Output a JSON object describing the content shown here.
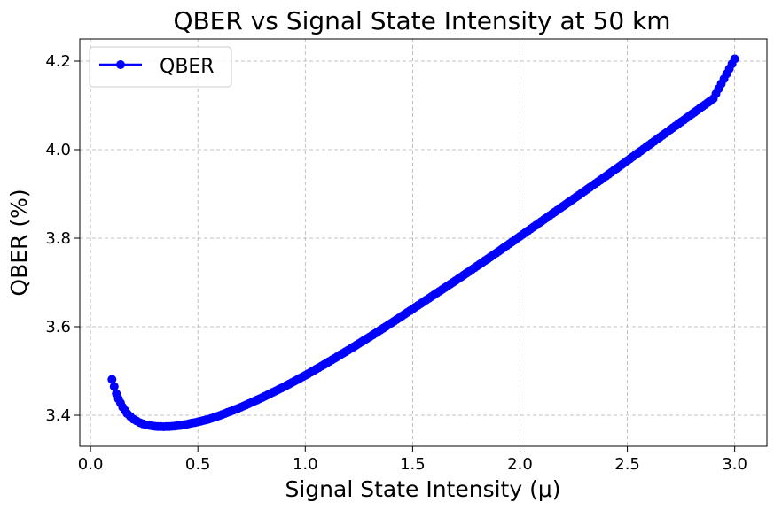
{
  "chart_data": {
    "type": "line",
    "title": "QBER vs Signal State Intensity at 50 km",
    "xlabel": "Signal State Intensity (μ)",
    "ylabel": "QBER (%)",
    "xlim": [
      -0.05,
      3.15
    ],
    "ylim": [
      3.33,
      4.25
    ],
    "xticks": [
      "0.0",
      "0.5",
      "1.0",
      "1.5",
      "2.0",
      "2.5",
      "3.0"
    ],
    "yticks": [
      "3.4",
      "3.6",
      "3.8",
      "4.0",
      "4.2"
    ],
    "grid": true,
    "legend": "upper-left",
    "series": [
      {
        "name": "QBER",
        "color": "#0000ff",
        "marker": "circle",
        "x": [
          0.1,
          0.11,
          0.12,
          0.13,
          0.15,
          0.17,
          0.2,
          0.23,
          0.26,
          0.3,
          0.34,
          0.38,
          0.42,
          0.46,
          0.5,
          0.55,
          0.6,
          0.7,
          0.8,
          0.9,
          1.0,
          1.1,
          1.2,
          1.3,
          1.4,
          1.5,
          1.6,
          1.7,
          1.8,
          1.9,
          2.0,
          2.1,
          2.2,
          2.3,
          2.4,
          2.5,
          2.6,
          2.7,
          2.8,
          2.9,
          3.0
        ],
        "y": [
          3.481,
          3.465,
          3.449,
          3.437,
          3.418,
          3.404,
          3.391,
          3.383,
          3.378,
          3.375,
          3.374,
          3.375,
          3.377,
          3.381,
          3.385,
          3.391,
          3.399,
          3.418,
          3.44,
          3.464,
          3.49,
          3.518,
          3.547,
          3.577,
          3.608,
          3.64,
          3.672,
          3.704,
          3.737,
          3.77,
          3.804,
          3.838,
          3.872,
          3.906,
          3.94,
          3.975,
          4.01,
          4.045,
          4.08,
          4.115,
          4.205
        ]
      }
    ]
  }
}
